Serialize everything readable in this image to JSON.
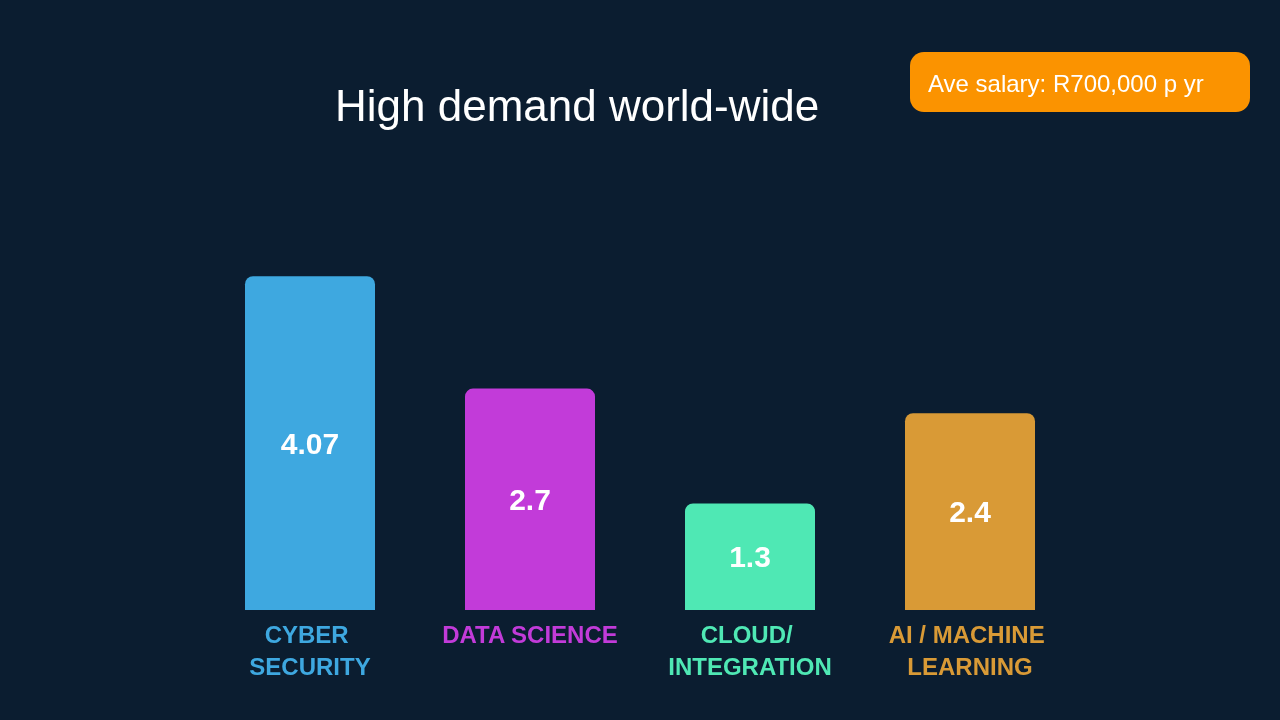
{
  "chart_data": {
    "type": "bar",
    "title": "High demand world-wide",
    "categories": [
      "CYBER SECURITY",
      "DATA SCIENCE",
      "CLOUD/ INTEGRATION",
      "AI / MACHINE LEARNING"
    ],
    "values": [
      4.07,
      2.7,
      1.3,
      2.4
    ],
    "colors": [
      "#3ea8e0",
      "#c23bd9",
      "#4fe8b4",
      "#d99a36"
    ],
    "data_labels": true,
    "annotations": [
      "Ave salary: R700,000 p yr"
    ]
  }
}
